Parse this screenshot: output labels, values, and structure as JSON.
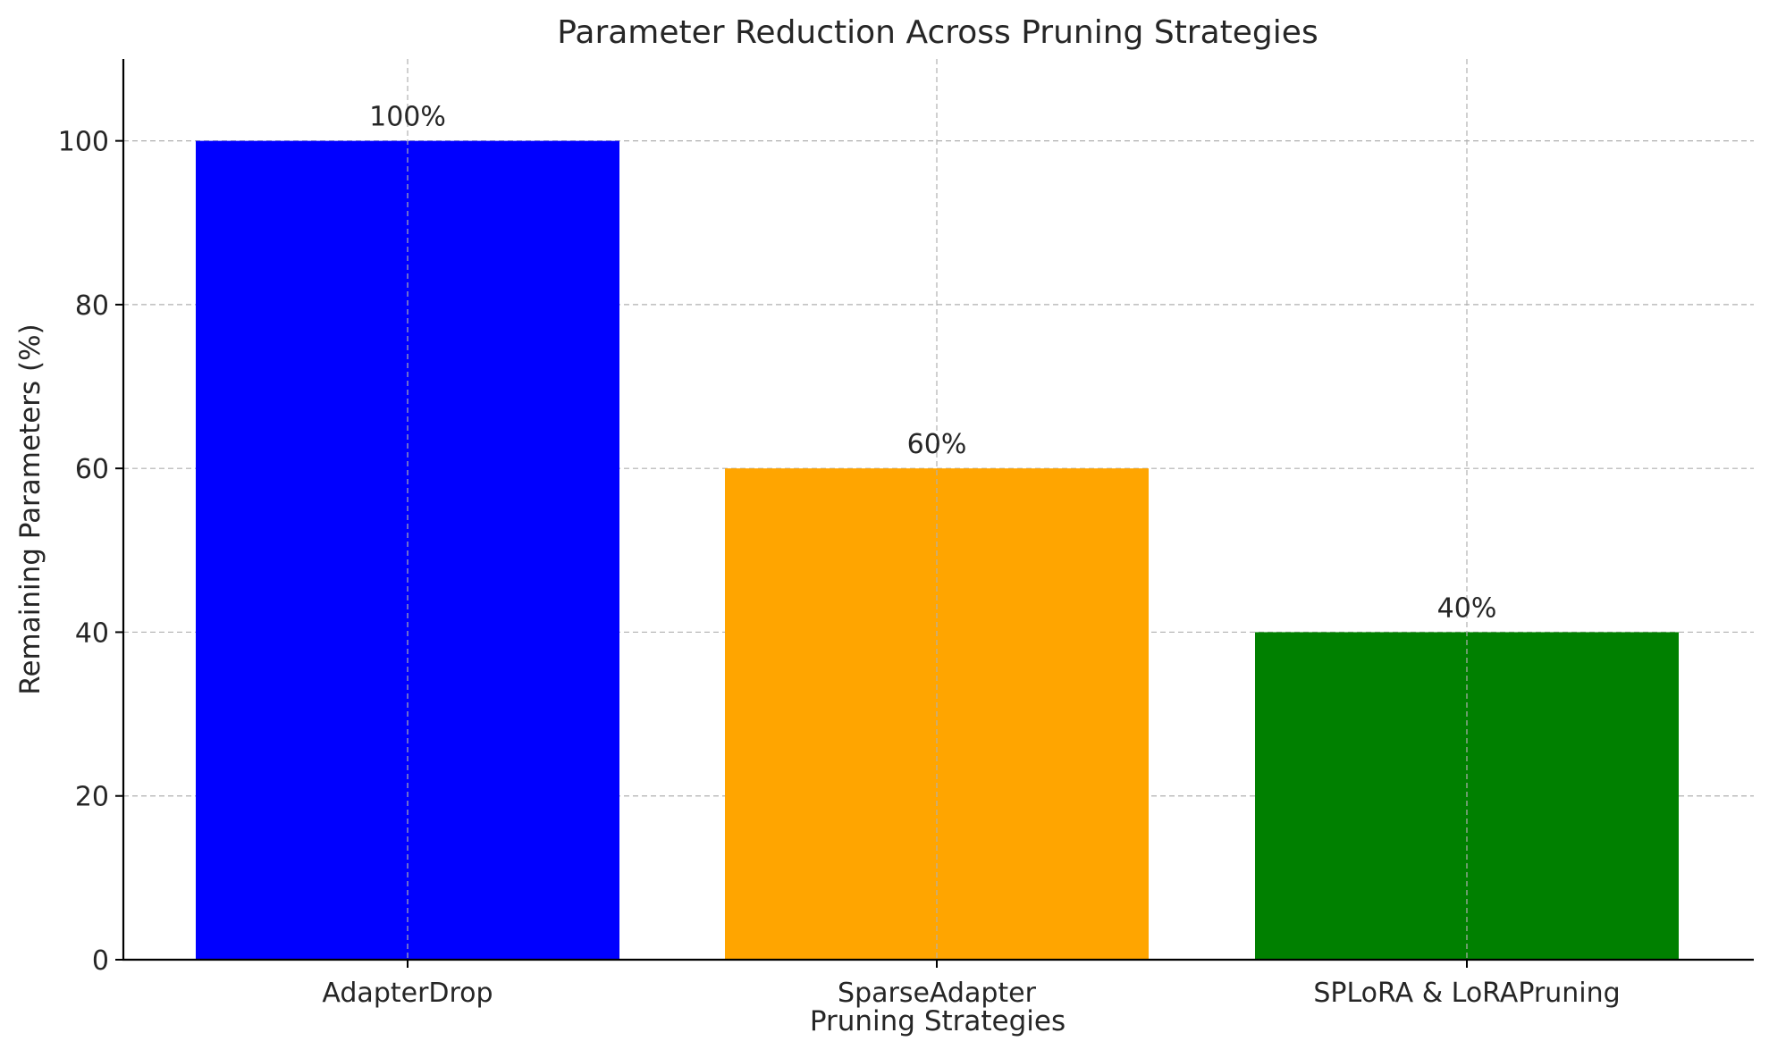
{
  "chart_data": {
    "type": "bar",
    "title": "Parameter Reduction Across Pruning Strategies",
    "xlabel": "Pruning Strategies",
    "ylabel": "Remaining Parameters (%)",
    "categories": [
      "AdapterDrop",
      "SparseAdapter",
      "SPLoRA & LoRAPruning"
    ],
    "values": [
      100,
      60,
      40
    ],
    "value_labels": [
      "100%",
      "60%",
      "40%"
    ],
    "colors": [
      "#0000ff",
      "#ffa500",
      "#008000"
    ],
    "ylim": [
      0,
      110
    ],
    "yticks": [
      0,
      20,
      40,
      60,
      80,
      100
    ],
    "grid": true
  }
}
